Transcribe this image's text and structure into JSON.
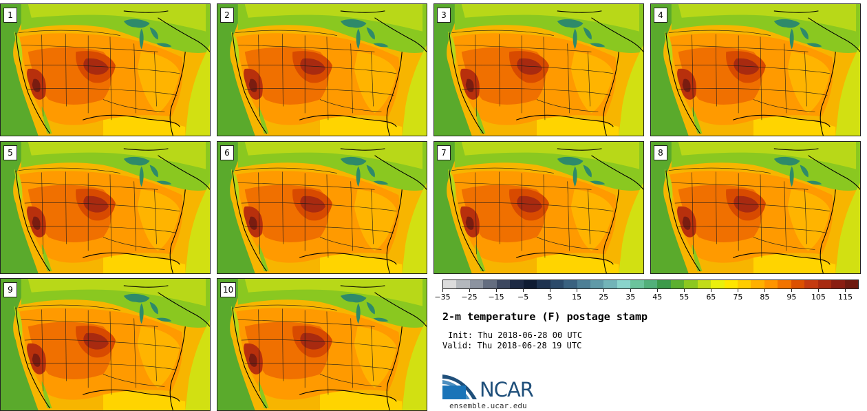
{
  "panels": [
    {
      "label": "1"
    },
    {
      "label": "2"
    },
    {
      "label": "3"
    },
    {
      "label": "4"
    },
    {
      "label": "5"
    },
    {
      "label": "6"
    },
    {
      "label": "7"
    },
    {
      "label": "8"
    },
    {
      "label": "9"
    },
    {
      "label": "10"
    }
  ],
  "colorbar": {
    "colors": [
      "#dcdcdc",
      "#b4b8bd",
      "#8c93a0",
      "#646d80",
      "#3d4860",
      "#1d2a44",
      "#0f1c33",
      "#1e3350",
      "#2b4a6a",
      "#3a6280",
      "#4d7f96",
      "#5f9aa8",
      "#72b4b8",
      "#8ad4cc",
      "#6bc49c",
      "#52b07a",
      "#3c9a4a",
      "#5cb030",
      "#8cc820",
      "#c2dc18",
      "#eaf00c",
      "#ffe600",
      "#ffcc00",
      "#ffb000",
      "#ff9400",
      "#f27300",
      "#dc5000",
      "#c43a10",
      "#a82a10",
      "#8a1e12",
      "#6e1a10"
    ],
    "tick_labels": [
      "−35",
      "−25",
      "−15",
      "−5",
      "5",
      "15",
      "25",
      "35",
      "45",
      "55",
      "65",
      "75",
      "85",
      "95",
      "105",
      "115"
    ]
  },
  "title": "2-m temperature (F) postage stamp",
  "init": "Init: Thu 2018-06-28 00 UTC",
  "valid": "Valid: Thu 2018-06-28 19 UTC",
  "logo": {
    "text": "NCAR",
    "brand_color": "#1f4f7a"
  },
  "site": "ensemble.ucar.edu"
}
